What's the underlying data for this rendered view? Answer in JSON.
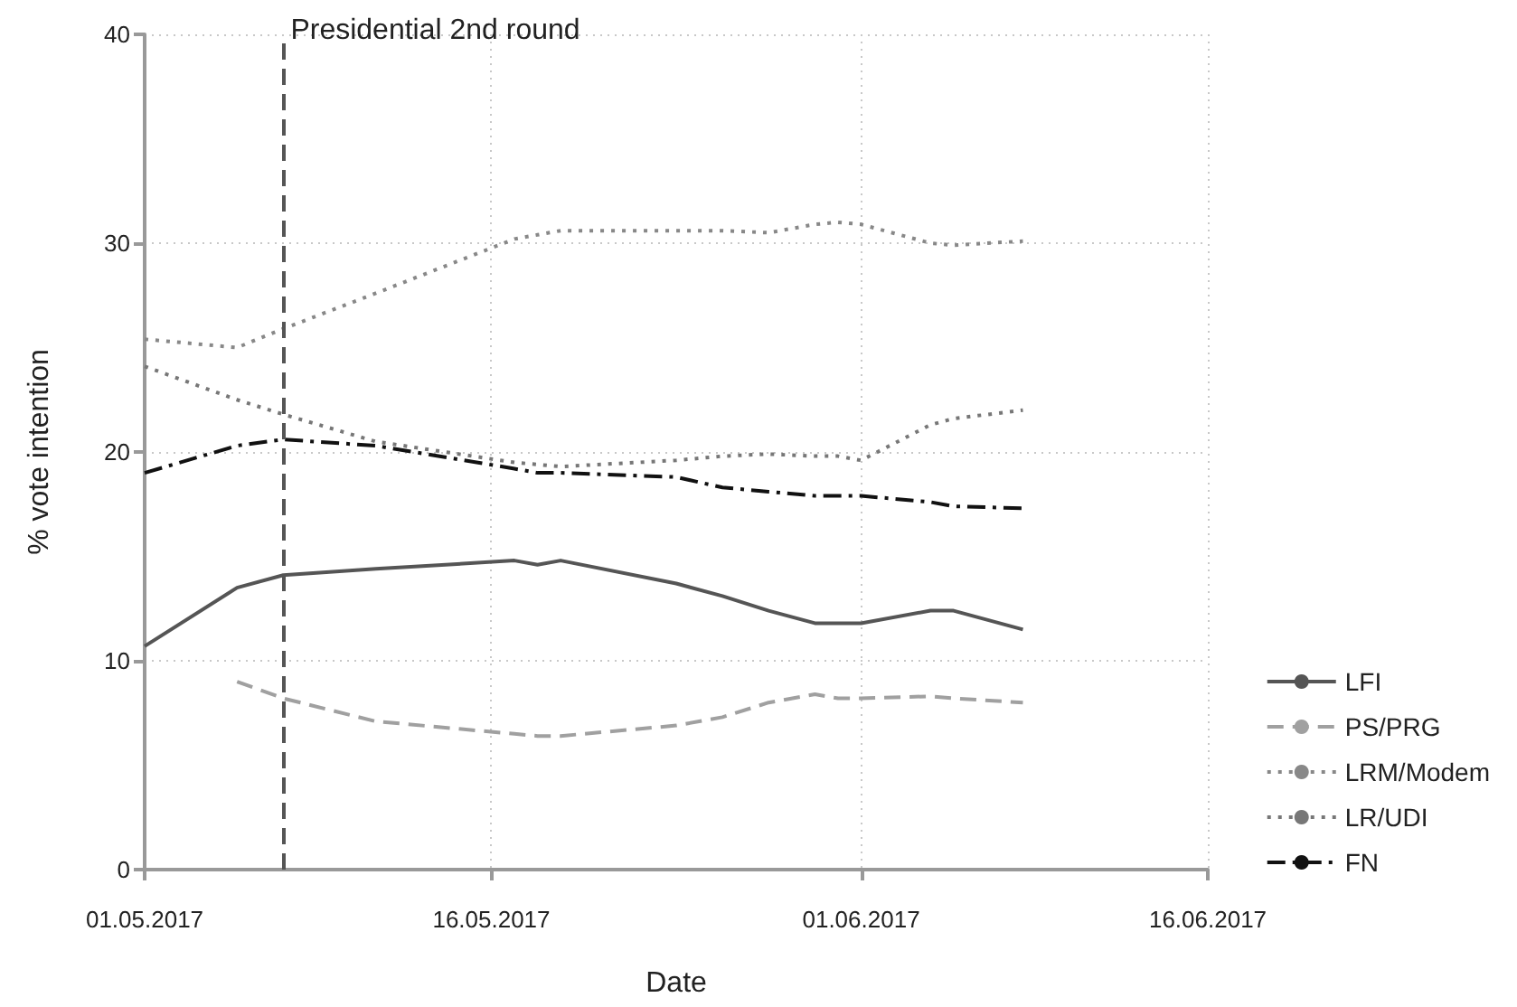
{
  "chart_data": {
    "type": "line",
    "xlabel": "Date",
    "ylabel": "% vote intention",
    "x": [
      "2017-05-01",
      "2017-05-05",
      "2017-05-07",
      "2017-05-11",
      "2017-05-17",
      "2017-05-18",
      "2017-05-19",
      "2017-05-24",
      "2017-05-26",
      "2017-05-28",
      "2017-05-30",
      "2017-05-31",
      "2017-06-01",
      "2017-06-04",
      "2017-06-05",
      "2017-06-08"
    ],
    "series": [
      {
        "name": "LFI",
        "color": "#555555",
        "line_style": "solid",
        "values": [
          10.7,
          13.5,
          14.1,
          14.4,
          14.8,
          14.6,
          14.8,
          13.7,
          13.1,
          12.4,
          11.8,
          11.8,
          11.8,
          12.4,
          12.4,
          11.5
        ]
      },
      {
        "name": "PS/PRG",
        "color": "#a0a0a0",
        "line_style": "dashed",
        "values": [
          null,
          9.0,
          8.2,
          7.1,
          6.5,
          6.4,
          6.4,
          6.9,
          7.3,
          8.0,
          8.4,
          8.2,
          8.2,
          8.3,
          8.2,
          8.0
        ]
      },
      {
        "name": "LRM/Modem",
        "color": "#888888",
        "line_style": "dotted",
        "values": [
          25.4,
          25.0,
          25.9,
          27.6,
          30.2,
          30.4,
          30.6,
          30.6,
          30.6,
          30.5,
          30.9,
          31.0,
          30.9,
          30.0,
          29.9,
          30.1
        ]
      },
      {
        "name": "LR/UDI",
        "color": "#777777",
        "line_style": "dotted",
        "values": [
          24.1,
          22.5,
          21.8,
          20.5,
          19.5,
          19.4,
          19.3,
          19.6,
          19.8,
          19.9,
          19.8,
          19.8,
          19.6,
          21.3,
          21.6,
          22.0
        ]
      },
      {
        "name": "FN",
        "color": "#111111",
        "line_style": "dashdot",
        "values": [
          19.0,
          20.3,
          20.6,
          20.3,
          19.2,
          19.0,
          19.0,
          18.8,
          18.3,
          18.1,
          17.9,
          17.9,
          17.9,
          17.6,
          17.4,
          17.3
        ]
      }
    ],
    "xlim": [
      "2017-05-01",
      "2017-06-16"
    ],
    "xticks": [
      {
        "value": "2017-05-01",
        "label": "01.05.2017"
      },
      {
        "value": "2017-05-16",
        "label": "16.05.2017"
      },
      {
        "value": "2017-06-01",
        "label": "01.06.2017"
      },
      {
        "value": "2017-06-16",
        "label": "16.06.2017"
      }
    ],
    "ylim": [
      0,
      40
    ],
    "yticks": [
      0,
      10,
      20,
      30,
      40
    ],
    "ref_lines": [
      {
        "axis": "x",
        "value": "2017-05-07",
        "label": "Presidential 2nd round",
        "color": "#555555",
        "line_style": "dashed"
      }
    ],
    "grid": true,
    "legend": "right",
    "marker": "none"
  }
}
